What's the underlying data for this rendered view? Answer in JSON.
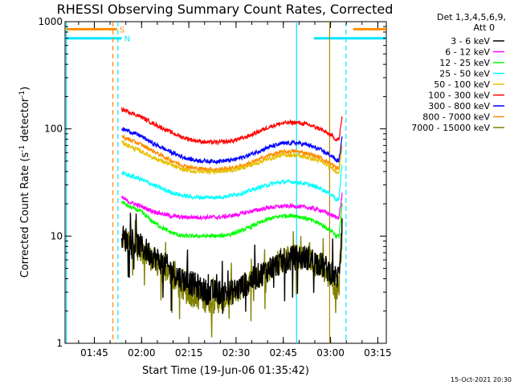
{
  "chart_data": {
    "type": "line",
    "title": "RHESSI Observing Summary Count Rates, Corrected",
    "xlabel": "Start Time (19-Jun-06 01:35:42)",
    "ylabel_main": "Corrected Count Rate (s",
    "ylabel_sup1": "-1",
    "ylabel_mid": " detector",
    "ylabel_sup2": "-1",
    "ylabel_end": ")",
    "ylog": true,
    "ylim": [
      1,
      1000
    ],
    "xlim_minutes": [
      0,
      102
    ],
    "x_ticks": [
      {
        "label": "01:45",
        "minutes": 9.3
      },
      {
        "label": "02:00",
        "minutes": 24.3
      },
      {
        "label": "02:15",
        "minutes": 39.3
      },
      {
        "label": "02:30",
        "minutes": 54.3
      },
      {
        "label": "02:45",
        "minutes": 69.3
      },
      {
        "label": "03:00",
        "minutes": 84.3
      },
      {
        "label": "03:15",
        "minutes": 99.3
      }
    ],
    "y_ticks": [
      {
        "label": "1",
        "value": 1
      },
      {
        "label": "10",
        "value": 10
      },
      {
        "label": "100",
        "value": 100
      },
      {
        "label": "1000",
        "value": 1000
      }
    ],
    "legend_header": [
      "Det 1,3,4,5,6,9,",
      "Att 0"
    ],
    "series": [
      {
        "name": "3 - 6 keV",
        "color": "#000000",
        "x": [
          18,
          20,
          24,
          28,
          33,
          37,
          41,
          45,
          49,
          53,
          57,
          61,
          65,
          69,
          73,
          77,
          81,
          85,
          86,
          87,
          88
        ],
        "y": [
          10,
          9,
          8,
          6.5,
          5,
          4,
          3.5,
          3,
          3,
          3,
          3.5,
          4.2,
          5,
          5.8,
          6.3,
          6.3,
          5.5,
          4.5,
          4,
          4.5,
          15
        ],
        "noisy": true
      },
      {
        "name": "6 - 12 keV",
        "color": "#ff00ff",
        "x": [
          18,
          20,
          24,
          28,
          33,
          37,
          41,
          45,
          49,
          53,
          57,
          61,
          65,
          69,
          73,
          77,
          81,
          85,
          86,
          87,
          88
        ],
        "y": [
          23,
          21,
          19,
          17,
          15.5,
          15,
          15,
          15,
          15,
          15.5,
          16.5,
          17.5,
          18.5,
          19,
          19,
          18.5,
          17.5,
          15.5,
          15,
          15,
          25
        ]
      },
      {
        "name": "12 - 25 keV",
        "color": "#00ff00",
        "x": [
          18,
          20,
          24,
          28,
          33,
          37,
          41,
          45,
          49,
          53,
          57,
          61,
          65,
          69,
          73,
          77,
          81,
          85,
          86,
          87,
          88
        ],
        "y": [
          21,
          19,
          17,
          13.5,
          11,
          10,
          10,
          10,
          10,
          10.5,
          11.5,
          13,
          14.5,
          15.5,
          15.5,
          14.5,
          13,
          11,
          10,
          10,
          20
        ]
      },
      {
        "name": "25 - 50 keV",
        "color": "#00ffff",
        "x": [
          18,
          20,
          24,
          28,
          33,
          37,
          41,
          45,
          49,
          53,
          57,
          61,
          65,
          69,
          73,
          77,
          81,
          85,
          86,
          87,
          88
        ],
        "y": [
          39,
          37,
          34,
          30,
          26,
          24,
          23,
          23,
          23,
          24,
          25.5,
          28,
          30.5,
          32,
          32,
          30.5,
          28,
          24,
          22,
          22,
          50
        ]
      },
      {
        "name": "50 - 100 keV",
        "color": "#e6c000",
        "x": [
          18,
          20,
          24,
          28,
          33,
          37,
          41,
          45,
          49,
          53,
          57,
          61,
          65,
          69,
          73,
          77,
          81,
          85,
          86,
          87,
          88
        ],
        "y": [
          75,
          70,
          62,
          54,
          47,
          42,
          40,
          40,
          40,
          41,
          44,
          48,
          53,
          57,
          57,
          54,
          50,
          43,
          40,
          40,
          70
        ]
      },
      {
        "name": "100 - 300 keV",
        "color": "#ff0000",
        "x": [
          18,
          20,
          24,
          28,
          33,
          37,
          41,
          45,
          49,
          53,
          57,
          61,
          65,
          69,
          73,
          77,
          81,
          85,
          86,
          87,
          88
        ],
        "y": [
          152,
          145,
          130,
          112,
          95,
          84,
          78,
          75,
          75,
          77,
          83,
          93,
          105,
          113,
          115,
          110,
          100,
          85,
          80,
          80,
          130
        ]
      },
      {
        "name": "300 - 800 keV",
        "color": "#0000ff",
        "x": [
          18,
          20,
          24,
          28,
          33,
          37,
          41,
          45,
          49,
          53,
          57,
          61,
          65,
          69,
          73,
          77,
          81,
          85,
          86,
          87,
          88
        ],
        "y": [
          100,
          96,
          86,
          73,
          62,
          55,
          51,
          50,
          50,
          51,
          55,
          61,
          68,
          73,
          74,
          71,
          64,
          55,
          51,
          51,
          85
        ]
      },
      {
        "name": "800 - 7000 keV",
        "color": "#ff8c00",
        "x": [
          18,
          20,
          24,
          28,
          33,
          37,
          41,
          45,
          49,
          53,
          57,
          61,
          65,
          69,
          73,
          77,
          81,
          85,
          86,
          87,
          88
        ],
        "y": [
          85,
          80,
          72,
          62,
          52,
          46,
          43,
          42,
          42,
          43,
          46,
          51,
          57,
          61,
          62,
          59,
          54,
          46,
          43,
          43,
          75
        ]
      },
      {
        "name": "7000 - 15000 keV",
        "color": "#808000",
        "x": [
          18,
          20,
          24,
          28,
          33,
          37,
          41,
          45,
          49,
          53,
          57,
          61,
          65,
          69,
          73,
          77,
          81,
          85,
          86,
          87,
          88
        ],
        "y": [
          9.5,
          8.5,
          7.5,
          6,
          4.5,
          3.2,
          2.8,
          2.5,
          2.5,
          2.8,
          3.5,
          4.2,
          5,
          6,
          6.5,
          6.2,
          5.2,
          3.8,
          3.2,
          3.5,
          12
        ],
        "noisy": true
      }
    ],
    "flags": [
      {
        "label": "S",
        "color": "#ff8c00",
        "value": 850,
        "segments": [
          [
            0,
            16.5
          ],
          [
            91.5,
            102
          ]
        ],
        "marker_minutes": [
          16.5,
          91.5
        ]
      },
      {
        "label": "N",
        "color": "#00e5ff",
        "value": 700,
        "segments": [
          [
            0,
            18
          ],
          [
            79,
            102
          ]
        ],
        "marker_minutes": [
          18,
          79
        ]
      }
    ],
    "vertical_lines": [
      {
        "minutes": 0.4,
        "color": "#00e5ff",
        "style": "solid"
      },
      {
        "minutes": 15.2,
        "color": "#ff8c00",
        "style": "dashed"
      },
      {
        "minutes": 16.8,
        "color": "#00e5ff",
        "style": "dashed"
      },
      {
        "minutes": 73.5,
        "color": "#00e5ff",
        "style": "solid"
      },
      {
        "minutes": 84.0,
        "color": "#b8860b",
        "style": "solid"
      },
      {
        "minutes": 89.2,
        "color": "#00e5ff",
        "style": "dashed"
      }
    ],
    "grid": false,
    "legend_position": "right"
  },
  "footer": {
    "timestamp": "15-Oct-2021 20:30"
  }
}
